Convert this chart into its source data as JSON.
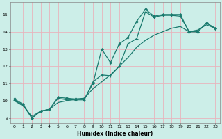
{
  "title": "",
  "xlabel": "Humidex (Indice chaleur)",
  "ylabel": "",
  "bg_color": "#cceee8",
  "grid_color": "#e8b4bc",
  "line_color": "#1a7a6e",
  "xlim": [
    -0.5,
    23.5
  ],
  "ylim": [
    8.7,
    15.7
  ],
  "xticks": [
    0,
    1,
    2,
    3,
    4,
    5,
    6,
    7,
    8,
    9,
    10,
    11,
    12,
    13,
    14,
    15,
    16,
    17,
    18,
    19,
    20,
    21,
    22,
    23
  ],
  "yticks": [
    9,
    10,
    11,
    12,
    13,
    14,
    15
  ],
  "line1_x": [
    0,
    1,
    2,
    3,
    4,
    5,
    6,
    7,
    8,
    9,
    10,
    11,
    12,
    13,
    14,
    15,
    16,
    17,
    18,
    19,
    20,
    21,
    22,
    23
  ],
  "line1_y": [
    10.1,
    9.8,
    9.0,
    9.4,
    9.5,
    10.2,
    10.15,
    10.1,
    10.1,
    11.0,
    13.0,
    12.2,
    13.3,
    13.65,
    14.6,
    15.3,
    14.9,
    15.0,
    15.0,
    15.0,
    14.0,
    14.0,
    14.5,
    14.2
  ],
  "line2_x": [
    0,
    1,
    2,
    3,
    4,
    5,
    6,
    7,
    8,
    9,
    10,
    11,
    12,
    13,
    14,
    15,
    16,
    17,
    18,
    19,
    20,
    21,
    22,
    23
  ],
  "line2_y": [
    10.05,
    9.75,
    9.0,
    9.4,
    9.5,
    10.15,
    10.05,
    10.05,
    10.05,
    11.1,
    11.5,
    11.45,
    12.0,
    13.3,
    13.6,
    15.15,
    14.85,
    14.95,
    14.95,
    14.9,
    14.0,
    14.0,
    14.5,
    14.2
  ],
  "line3_x": [
    0,
    1,
    2,
    3,
    4,
    5,
    6,
    7,
    8,
    9,
    10,
    11,
    12,
    13,
    14,
    15,
    16,
    17,
    18,
    19,
    20,
    21,
    22,
    23
  ],
  "line3_y": [
    10.0,
    9.7,
    9.1,
    9.4,
    9.5,
    9.9,
    10.0,
    10.1,
    10.15,
    10.7,
    11.1,
    11.5,
    12.0,
    12.5,
    13.1,
    13.5,
    13.8,
    14.0,
    14.2,
    14.3,
    14.0,
    14.1,
    14.4,
    14.2
  ]
}
